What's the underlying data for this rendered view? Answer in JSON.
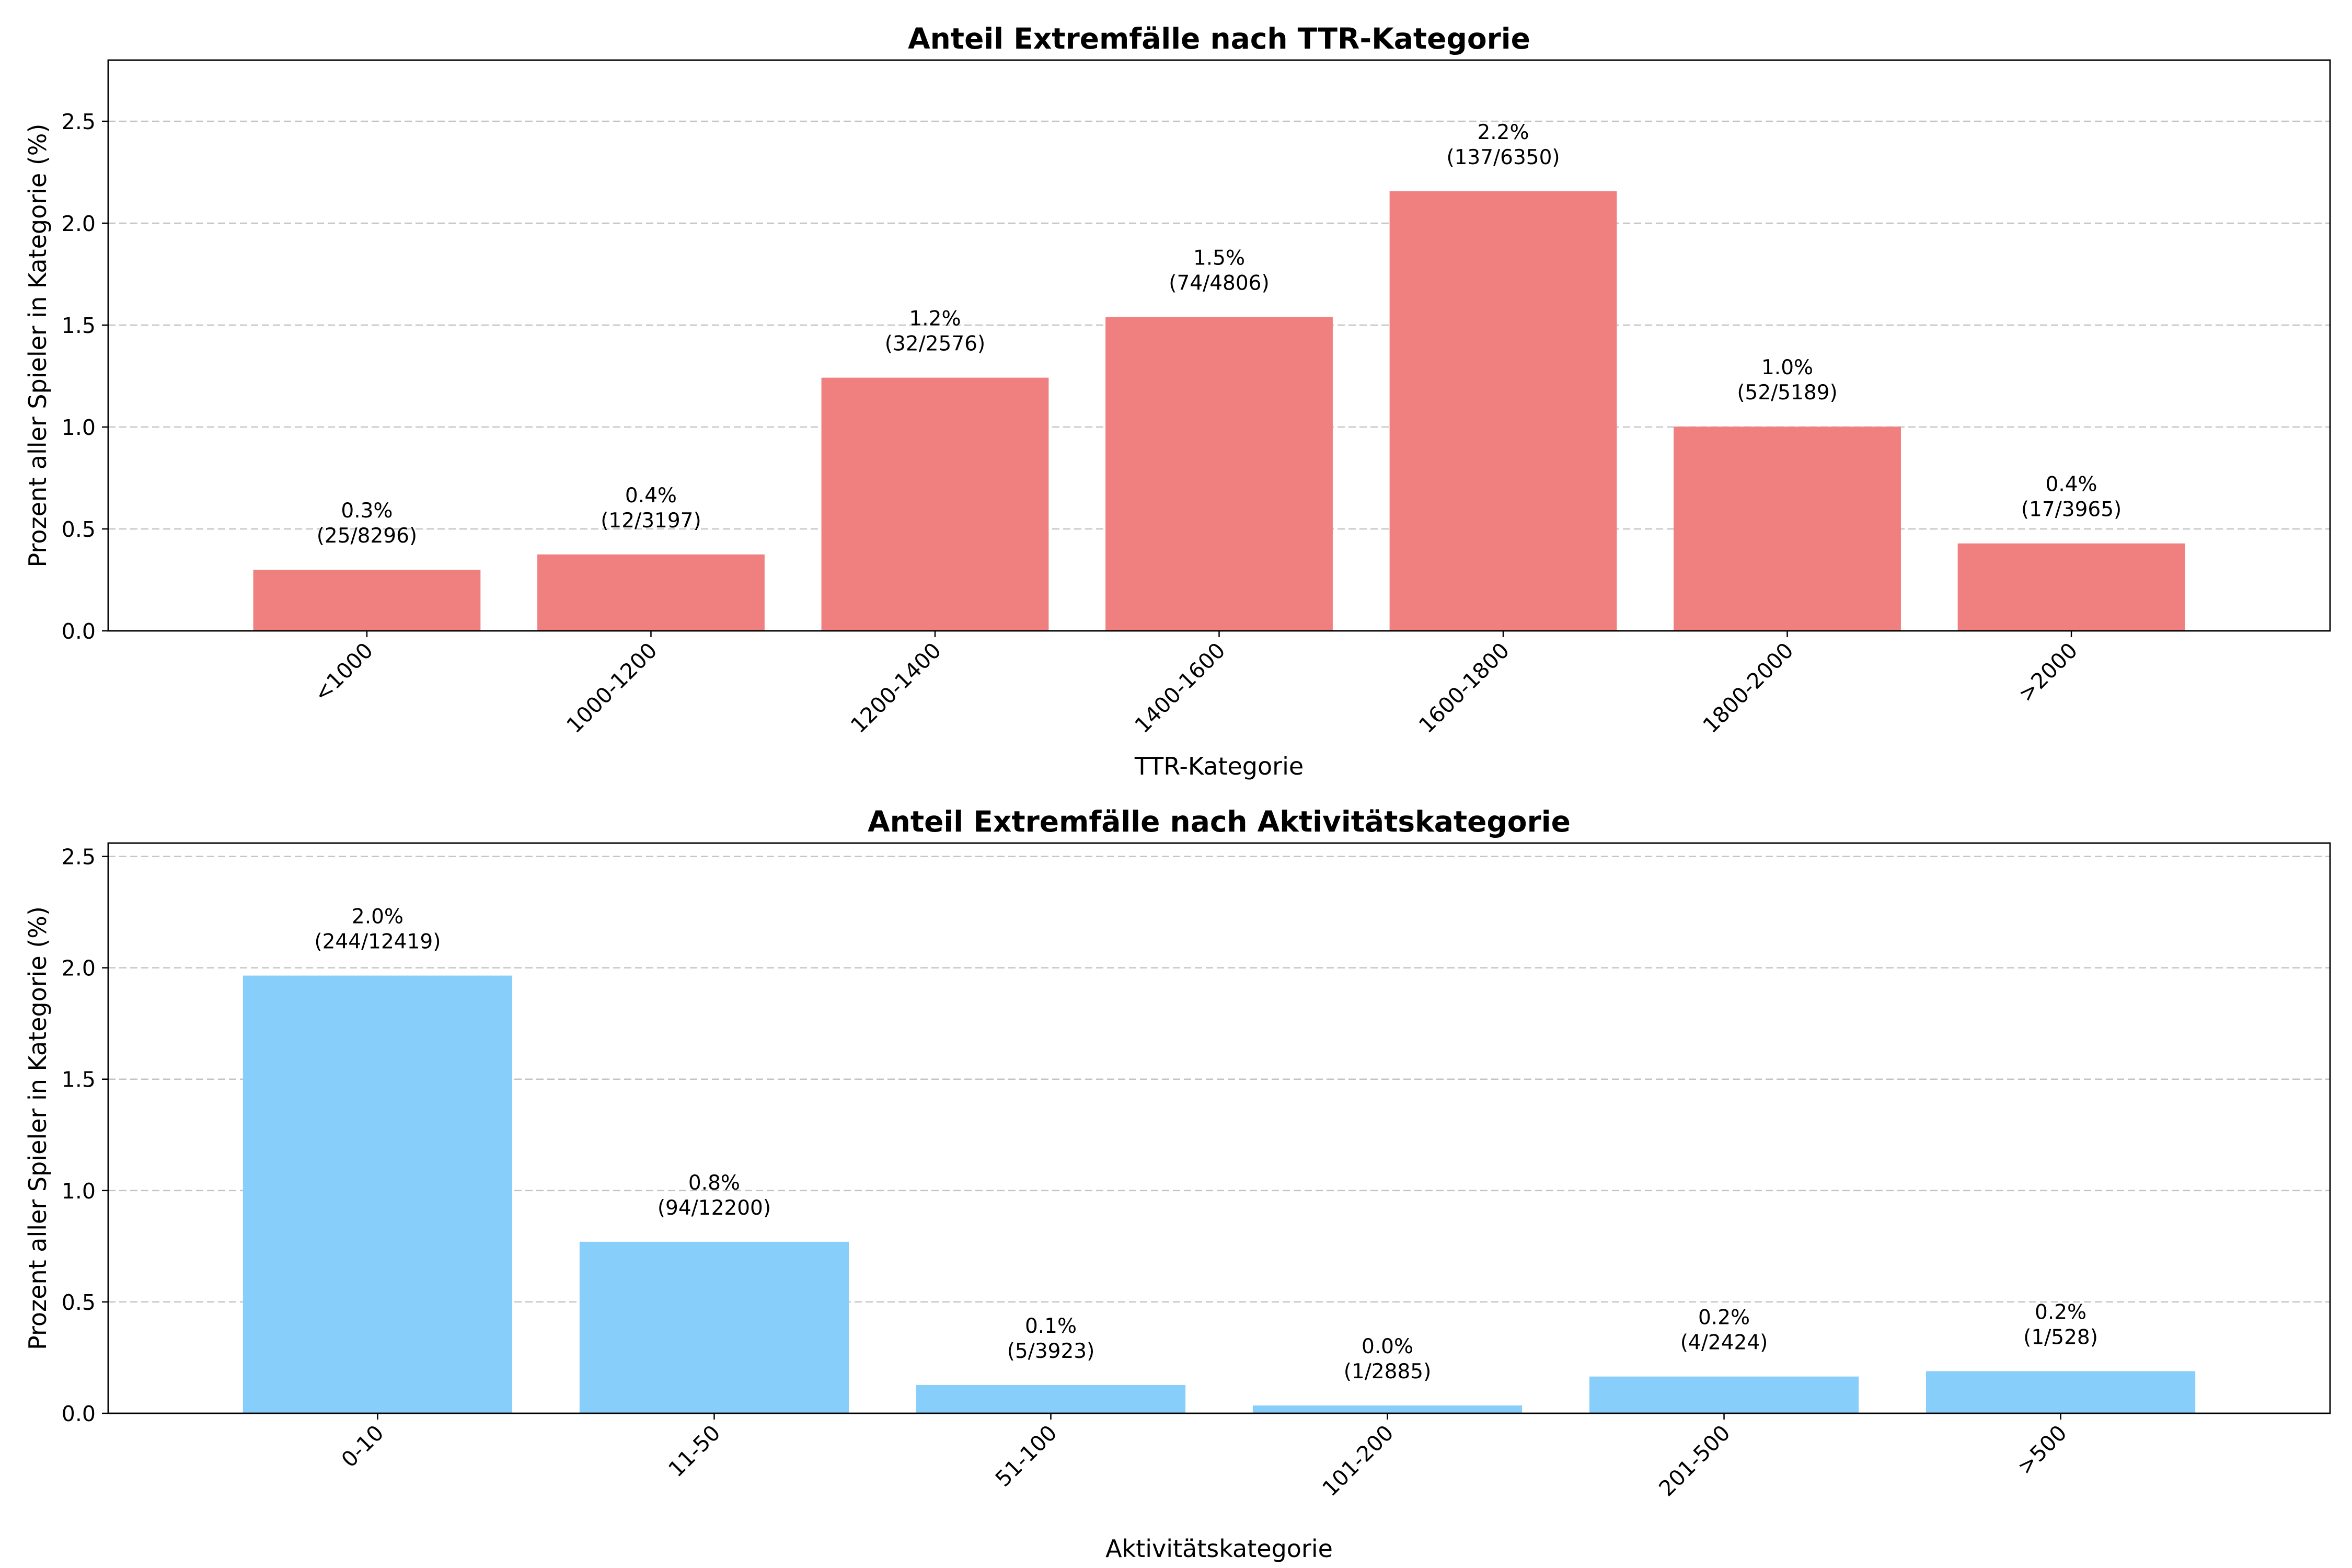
{
  "chart_data": [
    {
      "type": "bar",
      "title": "Anteil Extremfälle nach TTR-Kategorie",
      "xlabel": "TTR-Kategorie",
      "ylabel": "Prozent aller Spieler in Kategorie (%)",
      "ylim": [
        0,
        2.8
      ],
      "yticks": [
        "0.0",
        "0.5",
        "1.0",
        "1.5",
        "2.0",
        "2.5"
      ],
      "grid": "y dashed",
      "bar_color": "#f08080",
      "categories": [
        "<1000",
        "1000-1200",
        "1200-1400",
        "1400-1600",
        "1600-1800",
        "1800-2000",
        ">2000"
      ],
      "values": [
        0.3,
        0.375,
        1.242,
        1.54,
        2.157,
        1.002,
        0.429
      ],
      "labels": [
        [
          "0.3%",
          "(25/8296)"
        ],
        [
          "0.4%",
          "(12/3197)"
        ],
        [
          "1.2%",
          "(32/2576)"
        ],
        [
          "1.5%",
          "(74/4806)"
        ],
        [
          "2.2%",
          "(137/6350)"
        ],
        [
          "1.0%",
          "(52/5189)"
        ],
        [
          "0.4%",
          "(17/3965)"
        ]
      ]
    },
    {
      "type": "bar",
      "title": "Anteil Extremfälle nach Aktivitätskategorie",
      "xlabel": "Aktivitätskategorie",
      "ylabel": "Prozent aller Spieler in Kategorie (%)",
      "ylim": [
        0,
        2.56
      ],
      "yticks": [
        "0.0",
        "0.5",
        "1.0",
        "1.5",
        "2.0",
        "2.5"
      ],
      "grid": "y dashed",
      "bar_color": "#87cefa",
      "categories": [
        "0-10",
        "11-50",
        "51-100",
        "101-200",
        "201-500",
        ">500"
      ],
      "values": [
        1.965,
        0.77,
        0.127,
        0.035,
        0.165,
        0.189
      ],
      "labels": [
        [
          "2.0%",
          "(244/12419)"
        ],
        [
          "0.8%",
          "(94/12200)"
        ],
        [
          "0.1%",
          "(5/3923)"
        ],
        [
          "0.0%",
          "(1/2885)"
        ],
        [
          "0.2%",
          "(4/2424)"
        ],
        [
          "0.2%",
          "(1/528)"
        ]
      ]
    }
  ]
}
